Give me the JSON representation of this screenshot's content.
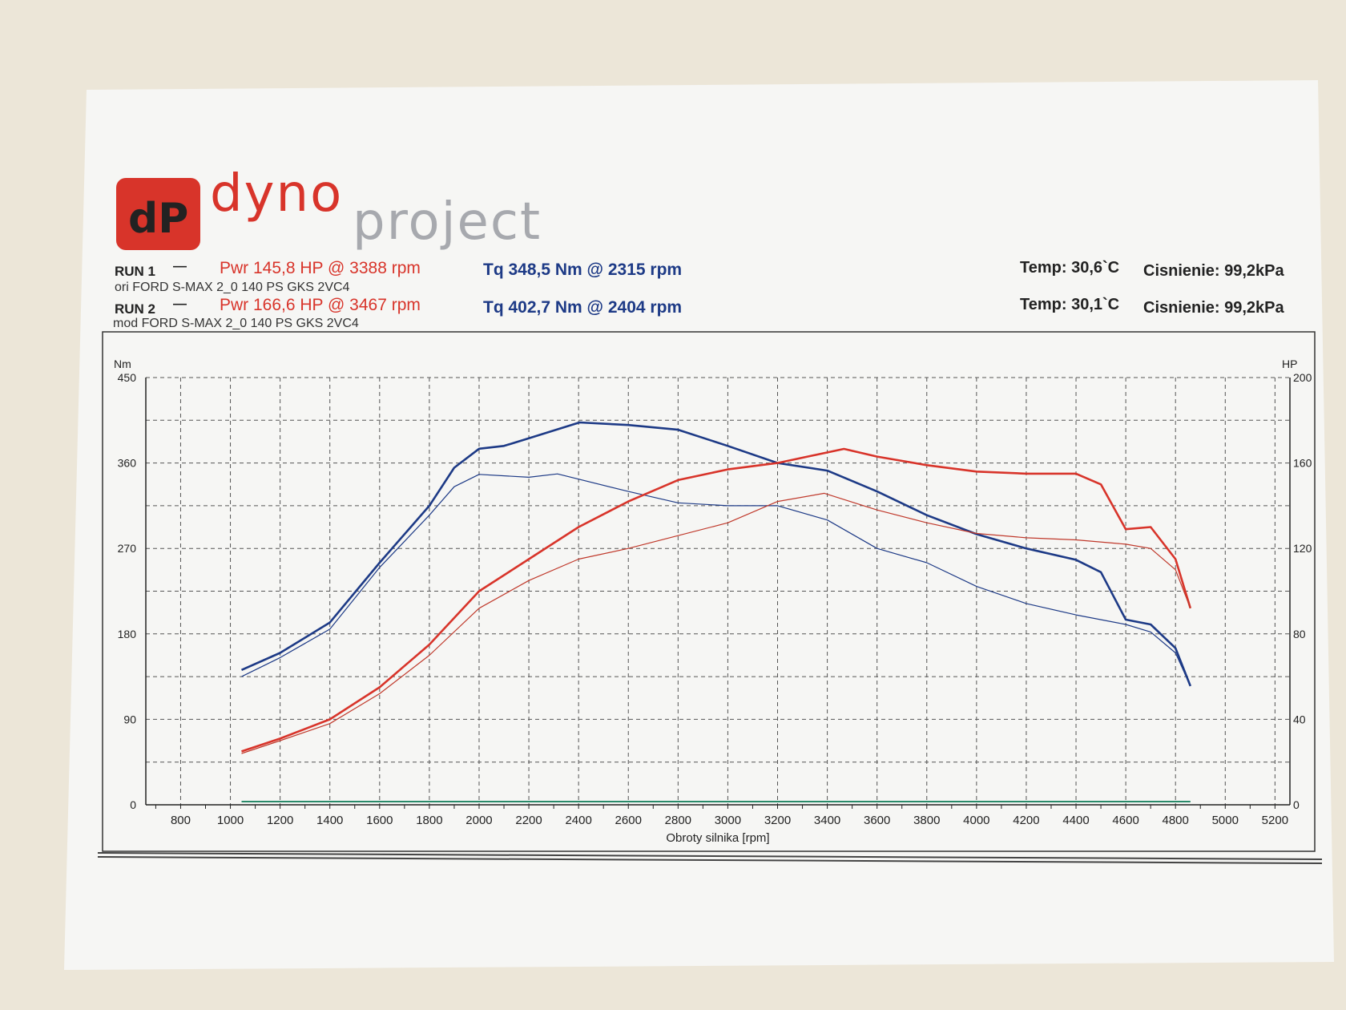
{
  "logo": {
    "mark": "dP",
    "word1": "dyno",
    "word2": "project"
  },
  "runs": [
    {
      "label": "RUN 1",
      "desc": "ori FORD S-MAX 2_0 140 PS GKS 2VC4",
      "power": "Pwr  145,8 HP @ 3388 rpm",
      "torque": "Tq 348,5 Nm @ 2315 rpm",
      "temp": "Temp: 30,6`C",
      "pressure": "Cisnienie: 99,2kPa"
    },
    {
      "label": "RUN 2",
      "desc": "mod FORD S-MAX 2_0 140 PS GKS 2VC4",
      "power": "Pwr  166,6 HP @ 3467 rpm",
      "torque": "Tq 402,7 Nm @ 2404 rpm",
      "temp": "Temp: 30,1`C",
      "pressure": "Cisnienie: 99,2kPa"
    }
  ],
  "colors": {
    "torque": "#1d3a86",
    "power": "#d8342a",
    "loss": "#2a8a6a"
  },
  "chart_data": {
    "type": "line",
    "xlabel": "Obroty silnika [rpm]",
    "ylabel_left": "Nm",
    "ylabel_right": "HP",
    "xlim": [
      660,
      5260
    ],
    "ylim_left": [
      0,
      450
    ],
    "ylim_right": [
      0,
      200
    ],
    "xticks": [
      800,
      1000,
      1200,
      1400,
      1600,
      1800,
      2000,
      2200,
      2400,
      2600,
      2800,
      3000,
      3200,
      3400,
      3600,
      3800,
      4000,
      4200,
      4400,
      4600,
      4800,
      5000,
      5200
    ],
    "yticks_left": [
      0,
      90,
      180,
      270,
      360,
      450
    ],
    "yticks_right": [
      0,
      40,
      80,
      120,
      160,
      200
    ],
    "grid": true,
    "series": [
      {
        "name": "RUN 2 torque",
        "axis": "left",
        "color": "#1d3a86",
        "width": 2.6,
        "x": [
          1045,
          1200,
          1400,
          1600,
          1800,
          1900,
          2000,
          2100,
          2200,
          2404,
          2600,
          2800,
          3000,
          3200,
          3400,
          3600,
          3800,
          4000,
          4200,
          4400,
          4500,
          4600,
          4700,
          4800,
          4860
        ],
        "y": [
          142,
          160,
          192,
          255,
          315,
          355,
          375,
          378,
          386,
          402.7,
          400,
          395,
          378,
          360,
          352,
          330,
          305,
          285,
          270,
          258,
          245,
          195,
          190,
          165,
          125
        ]
      },
      {
        "name": "RUN 1 torque",
        "axis": "left",
        "color": "#1d3a86",
        "width": 1.2,
        "x": [
          1045,
          1200,
          1400,
          1600,
          1800,
          1900,
          2000,
          2200,
          2315,
          2600,
          2800,
          3000,
          3200,
          3400,
          3600,
          3800,
          4000,
          4200,
          4400,
          4600,
          4700,
          4800,
          4860
        ],
        "y": [
          135,
          155,
          185,
          250,
          305,
          335,
          348,
          345,
          348.5,
          330,
          318,
          315,
          315,
          300,
          270,
          255,
          230,
          212,
          200,
          190,
          182,
          160,
          125
        ]
      },
      {
        "name": "RUN 2 power",
        "axis": "right",
        "color": "#d8342a",
        "width": 2.6,
        "x": [
          1045,
          1200,
          1400,
          1600,
          1800,
          2000,
          2200,
          2400,
          2600,
          2800,
          3000,
          3200,
          3467,
          3600,
          3800,
          4000,
          4200,
          4400,
          4500,
          4600,
          4700,
          4800,
          4860
        ],
        "y": [
          25,
          31,
          40,
          55,
          75,
          100,
          115,
          130,
          142,
          152,
          157,
          160,
          166.6,
          163,
          159,
          156,
          155,
          155,
          150,
          129,
          130,
          115,
          92
        ]
      },
      {
        "name": "RUN 1 power",
        "axis": "right",
        "color": "#c0392b",
        "width": 1.2,
        "x": [
          1045,
          1200,
          1400,
          1600,
          1800,
          2000,
          2200,
          2400,
          2600,
          2800,
          3000,
          3200,
          3388,
          3600,
          3800,
          4000,
          4200,
          4400,
          4600,
          4700,
          4800,
          4860
        ],
        "y": [
          24,
          30,
          38,
          52,
          70,
          92,
          105,
          115,
          120,
          126,
          132,
          142,
          145.8,
          138,
          132,
          127,
          125,
          124,
          122,
          120,
          110,
          92
        ]
      }
    ]
  }
}
